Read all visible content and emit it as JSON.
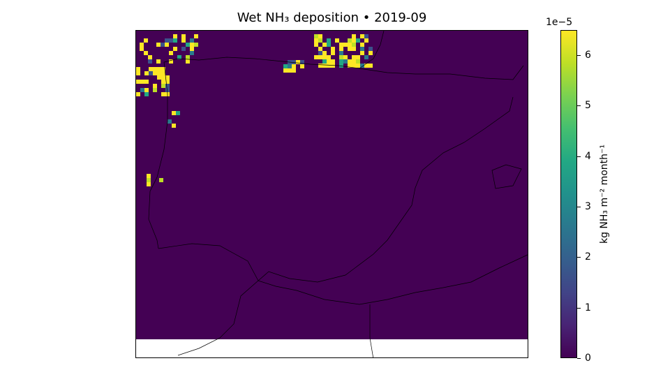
{
  "title": "Wet NH₃ deposition  •  2019-09",
  "colorbar": {
    "label": "kg NH₃ m⁻² month⁻¹",
    "exponent_label": "1e−5",
    "colormap": "viridis",
    "range": [
      0,
      6.5
    ],
    "ticks": [
      "0",
      "1",
      "2",
      "3",
      "4",
      "5",
      "6"
    ]
  },
  "colors": {
    "background_field": "#440154",
    "high": "#fde725",
    "coastline": "#000000"
  }
}
